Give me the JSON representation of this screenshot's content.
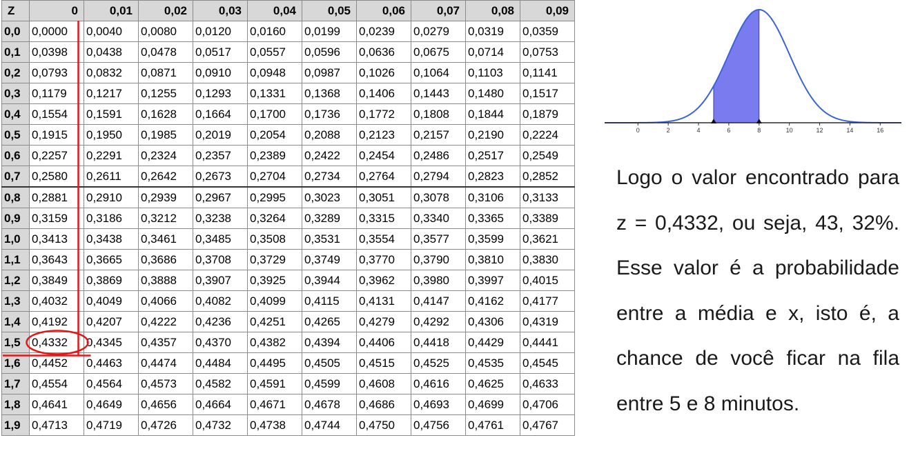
{
  "table": {
    "corner": "Z",
    "columns": [
      "0",
      "0,01",
      "0,02",
      "0,03",
      "0,04",
      "0,05",
      "0,06",
      "0,07",
      "0,08",
      "0,09"
    ],
    "rows": [
      {
        "z": "0,0",
        "values": [
          "0,0000",
          "0,0040",
          "0,0080",
          "0,0120",
          "0,0160",
          "0,0199",
          "0,0239",
          "0,0279",
          "0,0319",
          "0,0359"
        ]
      },
      {
        "z": "0,1",
        "values": [
          "0,0398",
          "0,0438",
          "0,0478",
          "0,0517",
          "0,0557",
          "0,0596",
          "0,0636",
          "0,0675",
          "0,0714",
          "0,0753"
        ]
      },
      {
        "z": "0,2",
        "values": [
          "0,0793",
          "0,0832",
          "0,0871",
          "0,0910",
          "0,0948",
          "0,0987",
          "0,1026",
          "0,1064",
          "0,1103",
          "0,1141"
        ]
      },
      {
        "z": "0,3",
        "values": [
          "0,1179",
          "0,1217",
          "0,1255",
          "0,1293",
          "0,1331",
          "0,1368",
          "0,1406",
          "0,1443",
          "0,1480",
          "0,1517"
        ]
      },
      {
        "z": "0,4",
        "values": [
          "0,1554",
          "0,1591",
          "0,1628",
          "0,1664",
          "0,1700",
          "0,1736",
          "0,1772",
          "0,1808",
          "0,1844",
          "0,1879"
        ]
      },
      {
        "z": "0,5",
        "values": [
          "0,1915",
          "0,1950",
          "0,1985",
          "0,2019",
          "0,2054",
          "0,2088",
          "0,2123",
          "0,2157",
          "0,2190",
          "0,2224"
        ]
      },
      {
        "z": "0,6",
        "values": [
          "0,2257",
          "0,2291",
          "0,2324",
          "0,2357",
          "0,2389",
          "0,2422",
          "0,2454",
          "0,2486",
          "0,2517",
          "0,2549"
        ]
      },
      {
        "z": "0,7",
        "values": [
          "0,2580",
          "0,2611",
          "0,2642",
          "0,2673",
          "0,2704",
          "0,2734",
          "0,2764",
          "0,2794",
          "0,2823",
          "0,2852"
        ]
      },
      {
        "z": "0,8",
        "values": [
          "0,2881",
          "0,2910",
          "0,2939",
          "0,2967",
          "0,2995",
          "0,3023",
          "0,3051",
          "0,3078",
          "0,3106",
          "0,3133"
        ]
      },
      {
        "z": "0,9",
        "values": [
          "0,3159",
          "0,3186",
          "0,3212",
          "0,3238",
          "0,3264",
          "0,3289",
          "0,3315",
          "0,3340",
          "0,3365",
          "0,3389"
        ]
      },
      {
        "z": "1,0",
        "values": [
          "0,3413",
          "0,3438",
          "0,3461",
          "0,3485",
          "0,3508",
          "0,3531",
          "0,3554",
          "0,3577",
          "0,3599",
          "0,3621"
        ]
      },
      {
        "z": "1,1",
        "values": [
          "0,3643",
          "0,3665",
          "0,3686",
          "0,3708",
          "0,3729",
          "0,3749",
          "0,3770",
          "0,3790",
          "0,3810",
          "0,3830"
        ]
      },
      {
        "z": "1,2",
        "values": [
          "0,3849",
          "0,3869",
          "0,3888",
          "0,3907",
          "0,3925",
          "0,3944",
          "0,3962",
          "0,3980",
          "0,3997",
          "0,4015"
        ]
      },
      {
        "z": "1,3",
        "values": [
          "0,4032",
          "0,4049",
          "0,4066",
          "0,4082",
          "0,4099",
          "0,4115",
          "0,4131",
          "0,4147",
          "0,4162",
          "0,4177"
        ]
      },
      {
        "z": "1,4",
        "values": [
          "0,4192",
          "0,4207",
          "0,4222",
          "0,4236",
          "0,4251",
          "0,4265",
          "0,4279",
          "0,4292",
          "0,4306",
          "0,4319"
        ]
      },
      {
        "z": "1,5",
        "values": [
          "0,4332",
          "0,4345",
          "0,4357",
          "0,4370",
          "0,4382",
          "0,4394",
          "0,4406",
          "0,4418",
          "0,4429",
          "0,4441"
        ]
      },
      {
        "z": "1,6",
        "values": [
          "0,4452",
          "0,4463",
          "0,4474",
          "0,4484",
          "0,4495",
          "0,4505",
          "0,4515",
          "0,4525",
          "0,4535",
          "0,4545"
        ]
      },
      {
        "z": "1,7",
        "values": [
          "0,4554",
          "0,4564",
          "0,4573",
          "0,4582",
          "0,4591",
          "0,4599",
          "0,4608",
          "0,4616",
          "0,4625",
          "0,4633"
        ]
      },
      {
        "z": "1,8",
        "values": [
          "0,4641",
          "0,4649",
          "0,4656",
          "0,4664",
          "0,4671",
          "0,4678",
          "0,4686",
          "0,4693",
          "0,4699",
          "0,4706"
        ]
      },
      {
        "z": "1,9",
        "values": [
          "0,4713",
          "0,4719",
          "0,4726",
          "0,4732",
          "0,4738",
          "0,4744",
          "0,4750",
          "0,4756",
          "0,4761",
          "0,4767"
        ]
      }
    ],
    "highlight": {
      "z": "1,5",
      "column": "0",
      "value": "0,4332"
    },
    "annotation_color": "#e01818"
  },
  "curve": {
    "x_ticks": [
      "0",
      "2",
      "4",
      "6",
      "8",
      "10",
      "12",
      "14",
      "16"
    ],
    "mean": 8,
    "shaded_from": 5,
    "shaded_to": 8,
    "curve_color": "#3b63d8",
    "fill_color": "#7b7bf0"
  },
  "explanation": "Logo o valor encontrado para z = 0,4332, ou seja, 43, 32%. Esse valor é a probabilidade entre a média e x, isto é, a chance de você ficar na fila entre 5 e 8 minutos."
}
